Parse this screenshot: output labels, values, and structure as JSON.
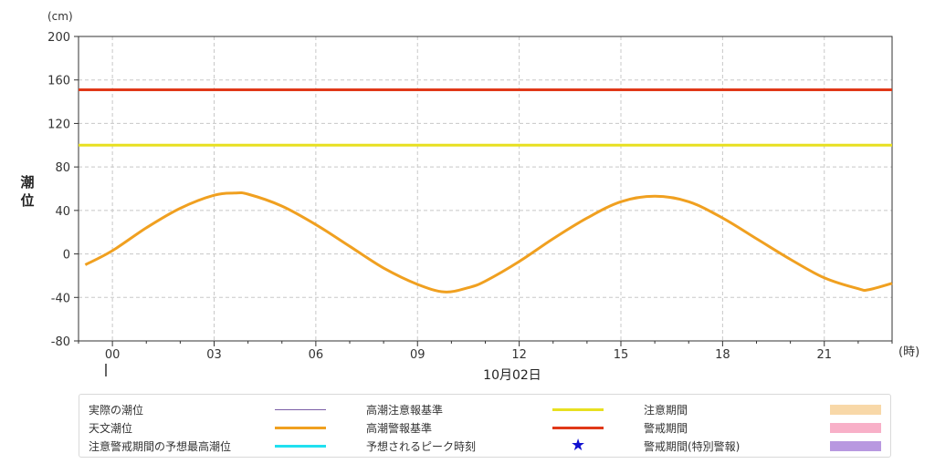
{
  "chart_data": {
    "type": "line",
    "y_unit": "(cm)",
    "x_unit": "(時)",
    "ylabel": "潮位",
    "date_label": "10月02日",
    "ylim": [
      -80,
      200
    ],
    "yticks": [
      -80,
      -40,
      0,
      40,
      80,
      120,
      160,
      200
    ],
    "xlim": [
      -1,
      23
    ],
    "xticks": [
      0,
      3,
      6,
      9,
      12,
      15,
      18,
      21
    ],
    "xtick_labels": [
      "00",
      "03",
      "06",
      "09",
      "12",
      "15",
      "18",
      "21"
    ],
    "grid": true,
    "series": [
      {
        "name": "天文潮位",
        "color": "#f0a020",
        "x": [
          -0.8,
          0,
          1,
          2,
          3,
          3.6,
          4,
          5,
          6,
          7,
          8,
          9,
          9.8,
          10.5,
          11,
          12,
          13,
          14,
          15,
          16,
          17,
          18,
          19,
          20,
          21,
          22,
          22.3,
          23
        ],
        "values": [
          -10,
          3,
          24,
          42,
          54,
          56,
          55,
          44,
          27,
          7,
          -13,
          -28,
          -35,
          -31,
          -25,
          -7,
          14,
          33,
          48,
          53,
          48,
          33,
          14,
          -5,
          -22,
          -32,
          -33,
          -27
        ]
      },
      {
        "name": "高潮注意報基準",
        "color": "#e8e020",
        "constant": 100
      },
      {
        "name": "高潮警報基準",
        "color": "#e03818",
        "constant": 151
      }
    ],
    "legend": {
      "placement": "bottom",
      "items": [
        {
          "label": "実際の潮位",
          "kind": "thin-line",
          "color": "#7b5ea7"
        },
        {
          "label": "天文潮位",
          "kind": "line",
          "color": "#f0a020"
        },
        {
          "label": "注意警戒期間の予想最高潮位",
          "kind": "line",
          "color": "#20e0f0"
        },
        {
          "label": "高潮注意報基準",
          "kind": "line",
          "color": "#e8e020"
        },
        {
          "label": "高潮警報基準",
          "kind": "line",
          "color": "#e03818"
        },
        {
          "label": "予想されるピーク時刻",
          "kind": "star",
          "color": "#1010d0"
        },
        {
          "label": "注意期間",
          "kind": "box",
          "color": "#f8d8a8"
        },
        {
          "label": "警戒期間",
          "kind": "box",
          "color": "#f8b0c8"
        },
        {
          "label": "警戒期間(特別警報)",
          "kind": "box",
          "color": "#b898e0"
        }
      ]
    }
  }
}
